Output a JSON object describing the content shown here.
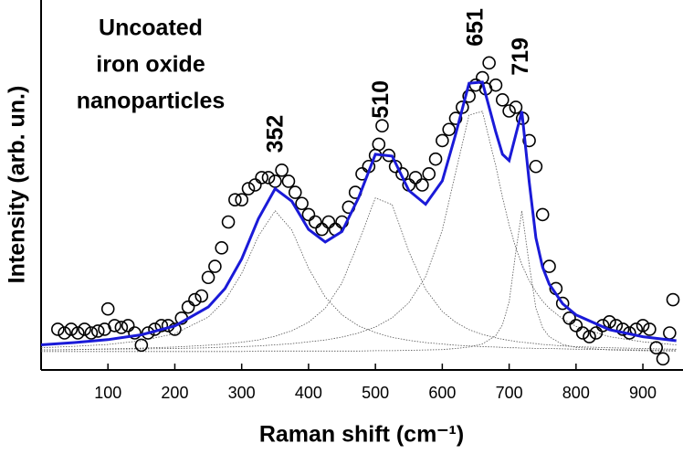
{
  "chart_data": {
    "type": "scatter",
    "title": [
      "Uncoated",
      "iron oxide",
      "nanoparticles"
    ],
    "xlabel": "Raman shift (cm⁻¹)",
    "ylabel": "Intensity (arb. un.)",
    "xlim": [
      0,
      960
    ],
    "ylim": [
      0,
      100
    ],
    "xticks": [
      100,
      200,
      300,
      400,
      500,
      600,
      700,
      800,
      900
    ],
    "peak_labels": [
      352,
      510,
      651,
      719
    ],
    "points": {
      "color": "#000000",
      "x": [
        25,
        35,
        45,
        55,
        65,
        75,
        85,
        95,
        100,
        110,
        120,
        130,
        140,
        150,
        160,
        170,
        180,
        190,
        200,
        210,
        220,
        230,
        240,
        250,
        260,
        270,
        280,
        290,
        300,
        310,
        320,
        330,
        340,
        350,
        360,
        370,
        380,
        390,
        400,
        410,
        420,
        430,
        440,
        450,
        460,
        470,
        480,
        490,
        500,
        505,
        510,
        520,
        530,
        540,
        550,
        560,
        570,
        580,
        590,
        600,
        610,
        620,
        630,
        640,
        650,
        660,
        665,
        670,
        680,
        690,
        700,
        710,
        720,
        730,
        740,
        750,
        760,
        770,
        780,
        790,
        800,
        810,
        820,
        830,
        840,
        850,
        860,
        870,
        880,
        890,
        900,
        910,
        920,
        930,
        940,
        945
      ],
      "values": [
        11,
        10,
        11,
        10,
        11,
        10,
        10.5,
        11,
        16.5,
        12,
        11.5,
        12,
        10,
        6.7,
        10,
        11,
        12,
        12,
        11,
        14,
        17,
        19,
        20,
        25,
        28,
        33,
        40,
        46,
        46,
        49,
        50,
        52,
        52,
        51,
        54,
        51,
        48,
        45,
        42,
        40,
        38,
        40,
        38,
        40,
        44,
        48,
        53,
        55,
        58,
        61,
        66,
        58,
        55,
        53,
        50,
        52,
        50,
        53,
        57,
        62,
        65,
        68,
        71,
        74,
        77,
        79,
        76,
        83,
        77,
        73,
        70,
        71,
        68,
        62,
        55,
        42,
        28,
        22,
        18,
        14,
        12,
        10,
        9,
        10,
        12,
        13,
        12,
        11,
        10,
        11,
        12,
        11,
        6,
        3,
        10,
        19
      ]
    },
    "curve_x": [
      0,
      50,
      100,
      150,
      200,
      250,
      275,
      300,
      325,
      350,
      375,
      400,
      425,
      450,
      475,
      500,
      525,
      550,
      575,
      600,
      620,
      640,
      660,
      680,
      690,
      700,
      710,
      719,
      730,
      740,
      750,
      760,
      780,
      800,
      850,
      900,
      950
    ],
    "fit": {
      "color": "#1a1ad8",
      "values": [
        6.8,
        7.4,
        8.2,
        9.5,
        11.9,
        17.0,
        22.0,
        30.0,
        40.9,
        49.0,
        45.6,
        38.0,
        34.6,
        37.4,
        46.6,
        58.3,
        57.8,
        48.5,
        44.8,
        51.1,
        63.7,
        77.5,
        77.8,
        64.3,
        58.3,
        56.6,
        63.6,
        69.9,
        50.8,
        35.7,
        27.8,
        23.2,
        17.9,
        14.9,
        10.9,
        9.0,
        7.9
      ]
    },
    "components": [
      {
        "color": "#555555",
        "values": [
          6.0,
          6.4,
          6.9,
          7.9,
          9.8,
          14.3,
          18.8,
          26.1,
          36.2,
          43.0,
          37.8,
          27.5,
          19.7,
          14.9,
          11.9,
          10.1,
          8.8,
          8.0,
          7.4,
          7.0,
          6.7,
          6.5,
          6.3,
          6.2,
          6.1,
          6.0,
          6.0,
          5.9,
          5.9,
          5.8,
          5.8,
          5.8,
          5.7,
          5.6,
          5.5,
          5.4,
          5.4
        ]
      },
      {
        "color": "#555555",
        "values": [
          5.4,
          5.5,
          5.7,
          5.9,
          6.2,
          6.7,
          7.0,
          7.5,
          8.1,
          9.1,
          10.6,
          12.9,
          16.7,
          23.5,
          34.6,
          46.5,
          44.7,
          32.0,
          21.8,
          15.8,
          12.9,
          10.9,
          9.6,
          8.7,
          8.3,
          8.0,
          7.7,
          7.5,
          7.3,
          7.1,
          6.9,
          6.8,
          6.5,
          6.3,
          6.0,
          5.8,
          5.6
        ]
      },
      {
        "color": "#555555",
        "values": [
          5.4,
          5.5,
          5.6,
          5.7,
          5.8,
          6.0,
          6.2,
          6.3,
          6.5,
          6.8,
          7.1,
          7.6,
          8.1,
          8.9,
          10.0,
          11.6,
          14.1,
          18.2,
          25.2,
          37.8,
          53.4,
          68.9,
          69.9,
          55.1,
          46.7,
          39.2,
          33.0,
          28.5,
          24.1,
          21.1,
          18.6,
          16.7,
          13.8,
          11.8,
          9.0,
          7.6,
          6.8
        ]
      },
      {
        "color": "#555555",
        "values": [
          5.0,
          5.0,
          5.0,
          5.0,
          5.0,
          5.0,
          5.0,
          5.0,
          5.1,
          5.1,
          5.1,
          5.1,
          5.1,
          5.1,
          5.1,
          5.2,
          5.2,
          5.3,
          5.4,
          5.5,
          5.8,
          6.2,
          7.0,
          9.3,
          12.2,
          18.4,
          31.9,
          43.0,
          28.5,
          16.7,
          11.4,
          9.0,
          6.9,
          6.1,
          5.4,
          5.2,
          5.1
        ]
      }
    ]
  }
}
